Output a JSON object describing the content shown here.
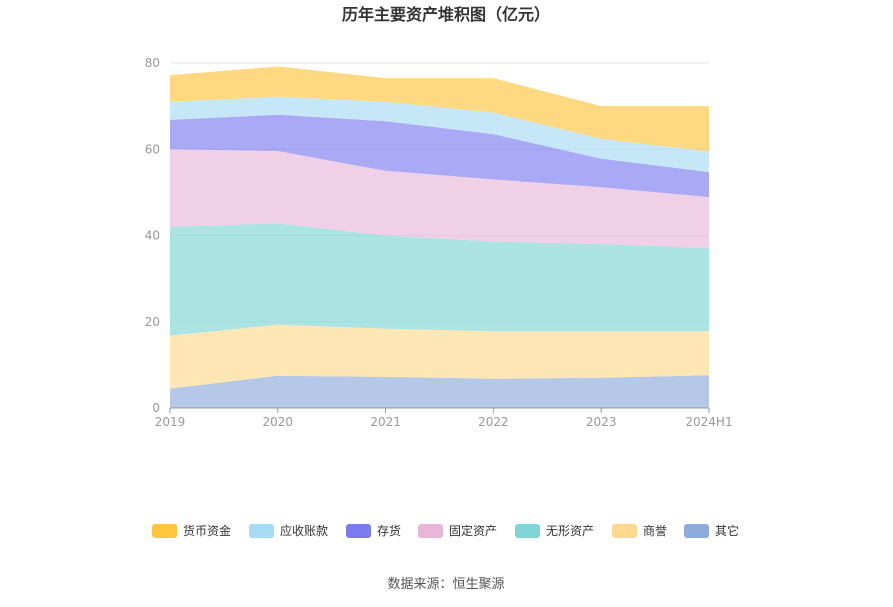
{
  "chart_data": {
    "type": "area",
    "stacked": true,
    "title": "历年主要资产堆积图（亿元）",
    "categories": [
      "2019",
      "2020",
      "2021",
      "2022",
      "2023",
      "2024H1"
    ],
    "ylim": [
      0,
      80
    ],
    "yticks": [
      "0",
      "20",
      "40",
      "60",
      "80"
    ],
    "grid": true,
    "legend_position": "bottom",
    "series": [
      {
        "name": "其它",
        "color": "#8faadc",
        "values": [
          4.5,
          7.5,
          7.2,
          6.8,
          7.0,
          7.6
        ]
      },
      {
        "name": "商誉",
        "color": "#ffd98e",
        "values": [
          12.3,
          11.8,
          11.2,
          11.0,
          10.8,
          10.2
        ]
      },
      {
        "name": "无形资产",
        "color": "#7fd5d5",
        "values": [
          25.2,
          23.5,
          21.6,
          20.8,
          20.2,
          19.3
        ]
      },
      {
        "name": "固定资产",
        "color": "#e8b7d8",
        "values": [
          18.0,
          16.8,
          15.0,
          14.4,
          13.2,
          11.8
        ]
      },
      {
        "name": "存货",
        "color": "#7b7bef",
        "values": [
          6.8,
          8.4,
          11.5,
          10.5,
          6.6,
          5.8
        ]
      },
      {
        "name": "应收账款",
        "color": "#a6daf5",
        "values": [
          4.2,
          4.2,
          4.5,
          5.0,
          4.6,
          4.8
        ]
      },
      {
        "name": "货币资金",
        "color": "#ffc53d",
        "values": [
          6.2,
          7.0,
          5.5,
          8.0,
          7.6,
          10.5
        ]
      }
    ],
    "source": "数据来源：恒生聚源"
  }
}
